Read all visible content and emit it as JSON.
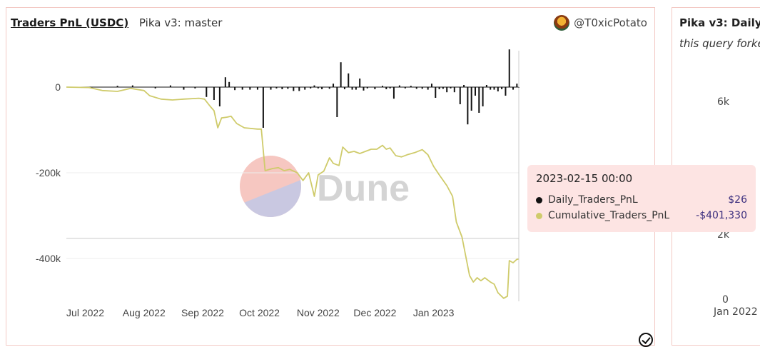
{
  "header": {
    "title": "Traders PnL (USDC)",
    "subtitle": "Pika v3: master",
    "author": "@T0xicPotato"
  },
  "watermark": "Dune",
  "tooltip": {
    "date": "2023-02-15 00:00",
    "rows": [
      {
        "name": "Daily_Traders_PnL",
        "value": "$26",
        "color": "#111111"
      },
      {
        "name": "Cumulative_Traders_PnL",
        "value": "-$401,330",
        "color": "#cfcb6b"
      }
    ]
  },
  "side_card": {
    "title": "Pika v3: Daily",
    "subtitle": "this query forke",
    "y_ticks": [
      "6k",
      "2k",
      "0"
    ],
    "x_tick": "Jan 2022"
  },
  "colors": {
    "daily": "#111111",
    "cumulative": "#cfcb6b",
    "card_border": "#f3c9c4",
    "tooltip_bg": "#fde4e3"
  },
  "chart_data": {
    "type": "bar+line",
    "x_labels": [
      "Jul 2022",
      "Aug 2022",
      "Sep 2022",
      "Oct 2022",
      "Nov 2022",
      "Dec 2022",
      "Jan 2023"
    ],
    "x_range": [
      "2022-06-21",
      "2023-02-15"
    ],
    "ylim": [
      -500000,
      100000
    ],
    "y_ticks": [
      {
        "value": 0,
        "label": "0"
      },
      {
        "value": -200000,
        "label": "-200k"
      },
      {
        "value": -400000,
        "label": "-400k"
      }
    ],
    "grid": true,
    "legend": "hidden",
    "series": [
      {
        "name": "Daily_Traders_PnL",
        "kind": "bar",
        "points": [
          [
            "2022-07-18",
            3000
          ],
          [
            "2022-07-26",
            4000
          ],
          [
            "2022-08-07",
            -3000
          ],
          [
            "2022-08-15",
            4000
          ],
          [
            "2022-08-22",
            -6000
          ],
          [
            "2022-08-28",
            -3000
          ],
          [
            "2022-09-03",
            -23000
          ],
          [
            "2022-09-07",
            -30000
          ],
          [
            "2022-09-10",
            -45000
          ],
          [
            "2022-09-13",
            23000
          ],
          [
            "2022-09-15",
            12000
          ],
          [
            "2022-09-18",
            -7000
          ],
          [
            "2022-09-22",
            -6000
          ],
          [
            "2022-09-26",
            -6000
          ],
          [
            "2022-09-30",
            -6000
          ],
          [
            "2022-10-03",
            -95000
          ],
          [
            "2022-10-07",
            -6000
          ],
          [
            "2022-10-10",
            -3000
          ],
          [
            "2022-10-13",
            -5000
          ],
          [
            "2022-10-16",
            -4000
          ],
          [
            "2022-10-19",
            -9000
          ],
          [
            "2022-10-22",
            -9000
          ],
          [
            "2022-10-25",
            -6000
          ],
          [
            "2022-10-28",
            -3000
          ],
          [
            "2022-10-30",
            4000
          ],
          [
            "2022-11-01",
            -3000
          ],
          [
            "2022-11-03",
            -5000
          ],
          [
            "2022-11-07",
            -4000
          ],
          [
            "2022-11-09",
            8000
          ],
          [
            "2022-11-11",
            -70000
          ],
          [
            "2022-11-13",
            58000
          ],
          [
            "2022-11-15",
            -5000
          ],
          [
            "2022-11-17",
            32000
          ],
          [
            "2022-11-19",
            -6000
          ],
          [
            "2022-11-21",
            -6000
          ],
          [
            "2022-11-23",
            20000
          ],
          [
            "2022-11-25",
            -8000
          ],
          [
            "2022-11-27",
            -3000
          ],
          [
            "2022-12-01",
            -5000
          ],
          [
            "2022-12-05",
            3000
          ],
          [
            "2022-12-07",
            -5000
          ],
          [
            "2022-12-09",
            -3000
          ],
          [
            "2022-12-11",
            -27000
          ],
          [
            "2022-12-14",
            4000
          ],
          [
            "2022-12-17",
            -3000
          ],
          [
            "2022-12-20",
            3000
          ],
          [
            "2022-12-23",
            -4000
          ],
          [
            "2022-12-26",
            -4000
          ],
          [
            "2022-12-29",
            -6000
          ],
          [
            "2022-12-31",
            8000
          ],
          [
            "2023-01-02",
            -25000
          ],
          [
            "2023-01-04",
            -5000
          ],
          [
            "2023-01-06",
            -4000
          ],
          [
            "2023-01-08",
            -12000
          ],
          [
            "2023-01-10",
            -3000
          ],
          [
            "2023-01-12",
            -12000
          ],
          [
            "2023-01-15",
            -40000
          ],
          [
            "2023-01-17",
            5000
          ],
          [
            "2023-01-19",
            -87000
          ],
          [
            "2023-01-21",
            -55000
          ],
          [
            "2023-01-23",
            -20000
          ],
          [
            "2023-01-25",
            -60000
          ],
          [
            "2023-01-27",
            -45000
          ],
          [
            "2023-01-29",
            5000
          ],
          [
            "2023-01-31",
            -6000
          ],
          [
            "2023-02-02",
            -6000
          ],
          [
            "2023-02-04",
            -10000
          ],
          [
            "2023-02-06",
            -5000
          ],
          [
            "2023-02-08",
            -20000
          ],
          [
            "2023-02-10",
            88000
          ],
          [
            "2023-02-12",
            -6000
          ],
          [
            "2023-02-14",
            8000
          ],
          [
            "2023-02-15",
            26
          ]
        ]
      },
      {
        "name": "Cumulative_Traders_PnL",
        "kind": "line",
        "points": [
          [
            "2022-06-21",
            0
          ],
          [
            "2022-07-03",
            -1000
          ],
          [
            "2022-07-10",
            -8000
          ],
          [
            "2022-07-18",
            -10000
          ],
          [
            "2022-07-25",
            -3000
          ],
          [
            "2022-08-01",
            -8000
          ],
          [
            "2022-08-04",
            -20000
          ],
          [
            "2022-08-10",
            -28000
          ],
          [
            "2022-08-16",
            -30000
          ],
          [
            "2022-08-22",
            -28000
          ],
          [
            "2022-08-30",
            -26000
          ],
          [
            "2022-09-02",
            -28000
          ],
          [
            "2022-09-05",
            -45000
          ],
          [
            "2022-09-07",
            -55000
          ],
          [
            "2022-09-09",
            -95000
          ],
          [
            "2022-09-11",
            -72000
          ],
          [
            "2022-09-14",
            -70000
          ],
          [
            "2022-09-16",
            -68000
          ],
          [
            "2022-09-19",
            -85000
          ],
          [
            "2022-09-23",
            -95000
          ],
          [
            "2022-09-30",
            -98000
          ],
          [
            "2022-10-02",
            -98000
          ],
          [
            "2022-10-04",
            -195000
          ],
          [
            "2022-10-08",
            -190000
          ],
          [
            "2022-10-11",
            -188000
          ],
          [
            "2022-10-14",
            -195000
          ],
          [
            "2022-10-17",
            -192000
          ],
          [
            "2022-10-21",
            -200000
          ],
          [
            "2022-10-24",
            -218000
          ],
          [
            "2022-10-27",
            -200000
          ],
          [
            "2022-10-30",
            -255000
          ],
          [
            "2022-11-01",
            -205000
          ],
          [
            "2022-11-04",
            -196000
          ],
          [
            "2022-11-07",
            -165000
          ],
          [
            "2022-11-09",
            -178000
          ],
          [
            "2022-11-12",
            -183000
          ],
          [
            "2022-11-14",
            -140000
          ],
          [
            "2022-11-17",
            -153000
          ],
          [
            "2022-11-20",
            -150000
          ],
          [
            "2022-11-23",
            -155000
          ],
          [
            "2022-11-26",
            -150000
          ],
          [
            "2022-11-29",
            -145000
          ],
          [
            "2022-12-02",
            -145000
          ],
          [
            "2022-12-05",
            -136000
          ],
          [
            "2022-12-07",
            -145000
          ],
          [
            "2022-12-09",
            -142000
          ],
          [
            "2022-12-12",
            -160000
          ],
          [
            "2022-12-15",
            -163000
          ],
          [
            "2022-12-18",
            -158000
          ],
          [
            "2022-12-22",
            -153000
          ],
          [
            "2022-12-26",
            -146000
          ],
          [
            "2022-12-29",
            -158000
          ],
          [
            "2023-01-01",
            -185000
          ],
          [
            "2023-01-04",
            -205000
          ],
          [
            "2023-01-08",
            -230000
          ],
          [
            "2023-01-11",
            -255000
          ],
          [
            "2023-01-13",
            -315000
          ],
          [
            "2023-01-16",
            -350000
          ],
          [
            "2023-01-18",
            -395000
          ],
          [
            "2023-01-20",
            -440000
          ],
          [
            "2023-01-22",
            -455000
          ],
          [
            "2023-01-24",
            -445000
          ],
          [
            "2023-01-26",
            -452000
          ],
          [
            "2023-01-28",
            -445000
          ],
          [
            "2023-01-31",
            -455000
          ],
          [
            "2023-02-02",
            -460000
          ],
          [
            "2023-02-04",
            -480000
          ],
          [
            "2023-02-07",
            -493000
          ],
          [
            "2023-02-09",
            -488000
          ],
          [
            "2023-02-10",
            -405000
          ],
          [
            "2023-02-12",
            -410000
          ],
          [
            "2023-02-14",
            -402000
          ],
          [
            "2023-02-15",
            -401330
          ]
        ]
      }
    ]
  }
}
